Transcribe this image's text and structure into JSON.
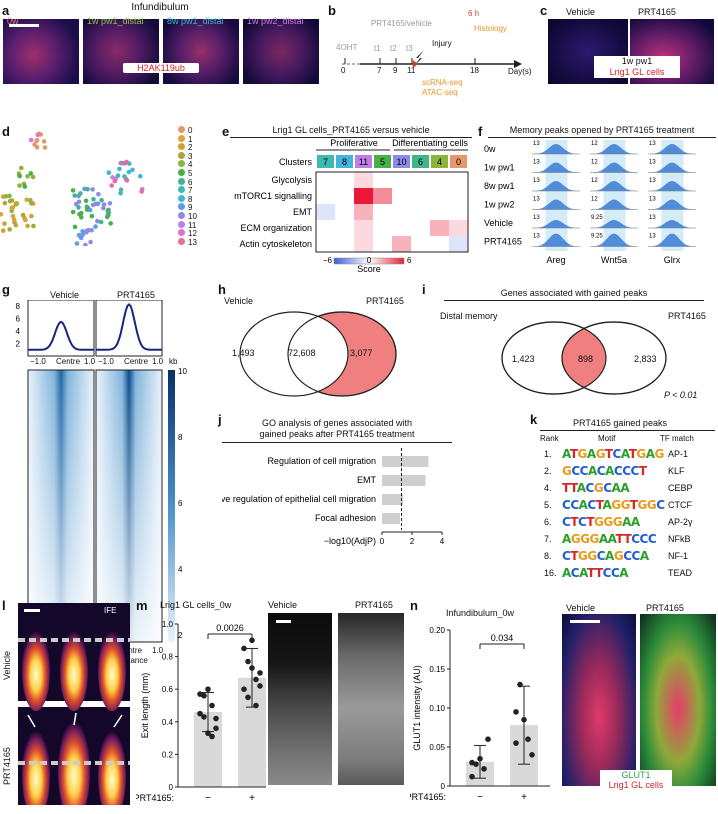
{
  "panel_letters": {
    "a": "a",
    "b": "b",
    "c": "c",
    "d": "d",
    "e": "e",
    "f": "f",
    "g": "g",
    "h": "h",
    "i": "i",
    "j": "j",
    "k": "k",
    "l": "l",
    "m": "m",
    "n": "n"
  },
  "a": {
    "title": "Infundibulum",
    "labels": [
      "0w",
      "1w pw1_distal",
      "8w pw1_distal",
      "1w pw2_distal"
    ],
    "label_colors": [
      "#f07a7a",
      "#8ec63f",
      "#3cb8c8",
      "#c77ed8"
    ],
    "stain": "H2AK119ub"
  },
  "b": {
    "treatment": "PRT4165/vehicle",
    "start": "4OHT",
    "ticks": [
      "0",
      "7",
      "9",
      "11",
      "18"
    ],
    "timepoints": [
      "t1",
      "t2",
      "t3"
    ],
    "injury": "Injury",
    "six_h": "6 h",
    "histology": "Histology",
    "seq1": "scRNA-seq",
    "seq2": "ATAC-seq",
    "unit": "Day(s)"
  },
  "c": {
    "vehicle": "Vehicle",
    "prt": "PRT4165",
    "tag": "1w pw1",
    "cells": "Lrig1 GL cells"
  },
  "d": {
    "clusters": [
      "0",
      "1",
      "2",
      "3",
      "4",
      "5",
      "6",
      "7",
      "8",
      "9",
      "10",
      "11",
      "12",
      "13"
    ],
    "colors": [
      "#e7956b",
      "#e0a23a",
      "#cda233",
      "#a8a635",
      "#8bb53a",
      "#47b04b",
      "#3fb58c",
      "#3fb9b4",
      "#45b4dc",
      "#5b9ee8",
      "#8e8ae8",
      "#bf7ee6",
      "#e66fcf",
      "#e86aa1"
    ]
  },
  "e": {
    "title": "Lrig1 GL cells_PRT4165 versus vehicle",
    "group1": "Proliferative",
    "group2": "Differentiating cells",
    "row_header": "Clusters",
    "clusters": [
      "7",
      "8",
      "11",
      "5",
      "10",
      "6",
      "4",
      "0"
    ],
    "rows": [
      "Glycolysis",
      "mTORC1 signalling",
      "EMT",
      "ECM organization",
      "Actin cytoskeleton"
    ],
    "scale_min": "−6",
    "scale_mid": "0",
    "scale_max": "6",
    "scale_label": "Score"
  },
  "f": {
    "title": "Memory peaks opened by PRT4165 treatment",
    "rows": [
      "0w",
      "1w pw1",
      "8w pw1",
      "1w pw2",
      "Vehicle",
      "PRT4165"
    ],
    "genes": [
      "Areg",
      "Wnt5a",
      "Glrx"
    ],
    "scales": [
      [
        "13",
        "13",
        "13",
        "13",
        "13",
        "13"
      ],
      [
        "12",
        "12",
        "12",
        "12",
        "9.25",
        "9.25"
      ],
      [
        "13",
        "13",
        "13",
        "13",
        "13",
        "13"
      ]
    ]
  },
  "g": {
    "vehicle": "Vehicle",
    "prt": "PRT4165",
    "yticks": [
      "8",
      "6",
      "4",
      "2"
    ],
    "xlabels": [
      "−1.0",
      "Centre",
      "1.0"
    ],
    "kb": "kb",
    "bottom_label": "Centre",
    "bottom_label2": "distance",
    "cbar": [
      "10",
      "8",
      "6",
      "4",
      "2"
    ]
  },
  "h": {
    "left": "Vehicle",
    "right": "PRT4165",
    "only_left": "1,493",
    "overlap": "72,608",
    "only_right": "3,077"
  },
  "i": {
    "title": "Genes associated with gained peaks",
    "left": "Distal memory",
    "right": "PRT4165",
    "only_left": "1,423",
    "overlap": "898",
    "only_right": "2,833",
    "p": "P < 0.01"
  },
  "j": {
    "title1": "GO analysis of genes associated with",
    "title2": "gained peaks after PRT4165 treatment",
    "terms": [
      "Regulation of cell migration",
      "EMT",
      "Positive regulation of epithelial cell migration",
      "Focal adhesion"
    ],
    "xlabel": "−log10(AdjP)",
    "xticks": [
      "0",
      "2",
      "4"
    ]
  },
  "k": {
    "title": "PRT4165 gained peaks",
    "h_rank": "Rank",
    "h_motif": "Motif",
    "h_tf": "TF match",
    "ranks": [
      "1.",
      "2.",
      "4.",
      "5.",
      "6.",
      "7.",
      "8.",
      "16."
    ],
    "motifs": [
      "ATGAGTCATGAG",
      "GCCACACCCT",
      "TTACGCAA",
      "CCACTAGGTGGC",
      "CTCTGGGAA",
      "AGGGAATTCCC",
      "CTGGCAGCCA",
      "ACATTCCA"
    ],
    "tfs": [
      "AP-1",
      "KLF",
      "CEBP",
      "CTCF",
      "AP-2γ",
      "NFkB",
      "NF-1",
      "TEAD"
    ]
  },
  "l": {
    "vehicle": "Vehicle",
    "prt": "PRT4165",
    "ife": "IFE"
  },
  "m": {
    "title": "Lrig1 GL cells_0w",
    "ylabel": "Exit length (mm)",
    "yticks": [
      "1.0",
      "0.8",
      "0.6",
      "0.4",
      "0.2",
      "0"
    ],
    "pval": "0.0026",
    "xlabel": "PRT4165:",
    "xcats": [
      "−",
      "+"
    ],
    "img1": "Vehicle",
    "img2": "PRT4165"
  },
  "n": {
    "title": "Infundibulum_0w",
    "ylabel": "GLUT1 intensity (AU)",
    "yticks": [
      "0.20",
      "0.15",
      "0.10",
      "0.05",
      "0"
    ],
    "pval": "0.034",
    "xlabel": "PRT4165:",
    "xcats": [
      "−",
      "+"
    ],
    "img1": "Vehicle",
    "img2": "PRT4165",
    "leg1": "GLUT1",
    "leg2": "Lrig1 GL cells"
  },
  "chart_data": [
    {
      "type": "heatmap",
      "title": "Lrig1 GL cells_PRT4165 versus vehicle",
      "x": [
        "7",
        "8",
        "11",
        "5",
        "10",
        "6",
        "4",
        "0"
      ],
      "y": [
        "Glycolysis",
        "mTORC1 signalling",
        "EMT",
        "ECM organization",
        "Actin cytoskeleton"
      ],
      "values": [
        [
          0,
          0,
          1,
          0,
          0,
          0,
          0,
          0
        ],
        [
          0,
          0,
          6,
          3,
          0,
          0,
          0,
          0
        ],
        [
          -1,
          0,
          2,
          0,
          0,
          0,
          0,
          0
        ],
        [
          0,
          0,
          1,
          0,
          0,
          0,
          2,
          1
        ],
        [
          0,
          0,
          1,
          0,
          2,
          0,
          0,
          -1
        ]
      ],
      "zlim": [
        -6,
        6
      ]
    },
    {
      "type": "bar",
      "title": "",
      "xlabel": "",
      "ylabel": "",
      "categories": [
        "Regulation of cell migration",
        "EMT",
        "Positive regulation of epithelial cell migration",
        "Focal adhesion"
      ],
      "values": [
        3.1,
        2.9,
        1.4,
        1.2
      ],
      "xlim": [
        0,
        4
      ],
      "threshold": 1.3
    },
    {
      "type": "bar",
      "title": "Lrig1 GL cells_0w",
      "ylabel": "Exit length (mm)",
      "categories": [
        "−",
        "+"
      ],
      "values": [
        0.46,
        0.67
      ],
      "errors": [
        0.12,
        0.18
      ],
      "ylim": [
        0,
        1.0
      ],
      "p_value": "0.0026",
      "points": [
        [
          0.57,
          0.56,
          0.6,
          0.5,
          0.42,
          0.45,
          0.43,
          0.33,
          0.31,
          0.36
        ],
        [
          0.85,
          0.77,
          0.73,
          0.66,
          0.62,
          0.6,
          0.55,
          0.9,
          0.5,
          0.7
        ]
      ]
    },
    {
      "type": "bar",
      "title": "Infundibulum_0w",
      "ylabel": "GLUT1 intensity (AU)",
      "categories": [
        "−",
        "+"
      ],
      "values": [
        0.031,
        0.078
      ],
      "errors": [
        0.021,
        0.05
      ],
      "ylim": [
        0,
        0.2
      ],
      "p_value": "0.034",
      "points": [
        [
          0.012,
          0.028,
          0.035,
          0.022,
          0.06,
          0.03
        ],
        [
          0.095,
          0.13,
          0.085,
          0.06,
          0.04,
          0.055
        ]
      ]
    },
    {
      "type": "line",
      "title": "",
      "xlabel": "",
      "ylabel": "",
      "series": [
        {
          "name": "Vehicle",
          "peak": 5.5
        },
        {
          "name": "PRT4165",
          "peak": 8.3
        }
      ],
      "ylim": [
        0,
        9
      ],
      "x": [
        "−1.0",
        "Centre",
        "1.0"
      ]
    }
  ]
}
